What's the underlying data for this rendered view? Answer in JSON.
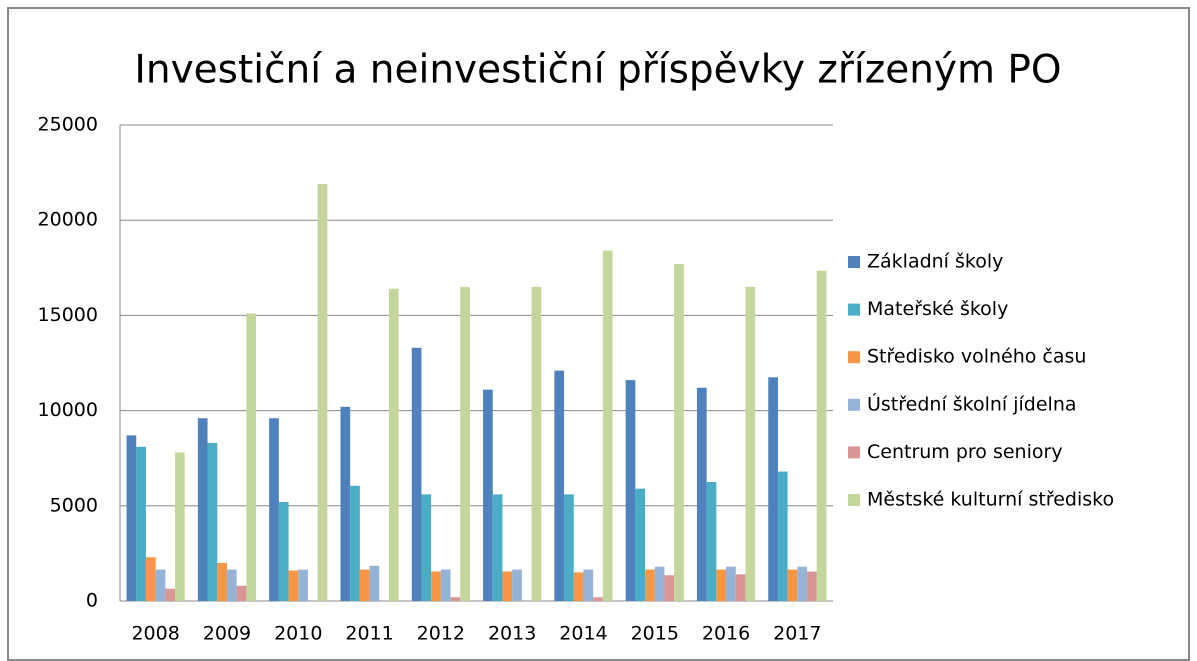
{
  "chart_data": {
    "type": "bar",
    "title": "Investiční a neinvestiční příspěvky zřízeným PO",
    "categories": [
      "2008",
      "2009",
      "2010",
      "2011",
      "2012",
      "2013",
      "2014",
      "2015",
      "2016",
      "2017"
    ],
    "series": [
      {
        "name": "Základní školy",
        "color": "#4f81bd",
        "values": [
          8700,
          9600,
          9600,
          10200,
          13300,
          11100,
          12100,
          11600,
          11200,
          11750
        ]
      },
      {
        "name": "Mateřské školy",
        "color": "#4bacc6",
        "values": [
          8100,
          8300,
          5200,
          6050,
          5600,
          5600,
          5600,
          5900,
          6250,
          6800
        ]
      },
      {
        "name": "Středisko volného času",
        "color": "#f79646",
        "values": [
          2300,
          2000,
          1600,
          1650,
          1550,
          1550,
          1500,
          1650,
          1650,
          1650
        ]
      },
      {
        "name": "Ústřední školní jídelna",
        "color": "#95b3d7",
        "values": [
          1650,
          1650,
          1650,
          1850,
          1650,
          1650,
          1650,
          1800,
          1800,
          1800
        ]
      },
      {
        "name": "Centrum pro seniory",
        "color": "#d99694",
        "values": [
          650,
          800,
          0,
          0,
          200,
          0,
          200,
          1350,
          1400,
          1550
        ]
      },
      {
        "name": "Městské kulturní středisko",
        "color": "#c3d69b",
        "values": [
          7800,
          15100,
          21900,
          16400,
          16500,
          16500,
          18400,
          17700,
          16500,
          17350
        ]
      }
    ],
    "ylim": [
      0,
      25000
    ],
    "yticks": [
      0,
      5000,
      10000,
      15000,
      20000,
      25000
    ],
    "grid": true,
    "legend": "right"
  }
}
